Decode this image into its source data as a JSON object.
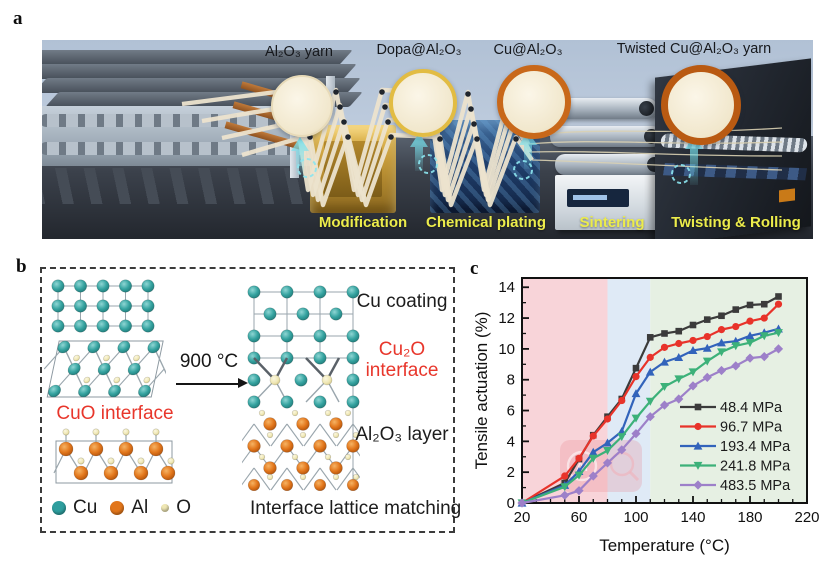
{
  "panel_a": {
    "letter": "a",
    "yarns": [
      {
        "label": "Al₂O₃ yarn",
        "ring_color": "#e7dab8",
        "ring_width": 2
      },
      {
        "label": "Dopa@Al₂O₃",
        "ring_color": "#e2bc43",
        "ring_width": 4
      },
      {
        "label": "Cu@Al₂O₃",
        "ring_color": "#c8681a",
        "ring_width": 6
      },
      {
        "label": "Twisted Cu@Al₂O₃ yarn",
        "ring_color": "#b95a12",
        "ring_width": 7
      }
    ],
    "process_labels": [
      "Modification",
      "Chemical plating",
      "Sintering",
      "Twisting & Rolling"
    ],
    "process_label_color": "#ecec4b"
  },
  "panel_b": {
    "letter": "b",
    "reaction_temperature": "900 °C",
    "left_interface_label": "CuO interface",
    "right_labels": {
      "coating": "Cu coating",
      "interface": "Cu₂O interface",
      "layer": "Al₂O₃ layer"
    },
    "legend": [
      {
        "symbol": "Cu",
        "color": "#2e9e9e"
      },
      {
        "symbol": "Al",
        "color": "#e2761b"
      },
      {
        "symbol": "O",
        "color": "#efe7b4"
      }
    ],
    "caption": "Interface lattice matching"
  },
  "panel_c": {
    "letter": "c"
  },
  "chart_data": {
    "type": "line",
    "title": "",
    "xlabel": "Temperature (°C)",
    "ylabel": "Tensile actuation (%)",
    "xlim": [
      20,
      220
    ],
    "ylim": [
      0,
      14.6
    ],
    "x_ticks": [
      20,
      60,
      100,
      140,
      180,
      220
    ],
    "x_minor_step": 10,
    "y_ticks": [
      0,
      2,
      4,
      6,
      8,
      10,
      12,
      14
    ],
    "y_minor_step": 1,
    "grid": false,
    "legend_position": "inside-right-lower",
    "background_bands": [
      {
        "x_from": 20,
        "x_to": 80,
        "color": "#f8d4d9"
      },
      {
        "x_from": 80,
        "x_to": 110,
        "color": "#dfeaf6"
      },
      {
        "x_from": 110,
        "x_to": 220,
        "color": "#e6f0e3"
      }
    ],
    "x": [
      20,
      50,
      60,
      70,
      80,
      90,
      100,
      110,
      120,
      130,
      140,
      150,
      160,
      170,
      180,
      190,
      200
    ],
    "series": [
      {
        "name": "48.4 MPa",
        "color": "#3b3b3b",
        "marker": "square",
        "values": [
          0,
          1.3,
          2.85,
          4.4,
          5.6,
          6.75,
          8.75,
          10.75,
          11.0,
          11.15,
          11.55,
          11.9,
          12.15,
          12.55,
          12.85,
          12.9,
          13.4
        ]
      },
      {
        "name": "96.7 MPa",
        "color": "#e8332a",
        "marker": "circle",
        "values": [
          0,
          1.75,
          2.9,
          4.35,
          5.45,
          6.65,
          8.2,
          9.45,
          10.1,
          10.35,
          10.55,
          10.8,
          11.25,
          11.45,
          11.8,
          12.0,
          12.9
        ]
      },
      {
        "name": "193.4 MPa",
        "color": "#3263bb",
        "marker": "triangle-up",
        "values": [
          0,
          1.15,
          2.05,
          3.3,
          3.9,
          4.65,
          7.1,
          8.5,
          9.15,
          9.45,
          9.9,
          10.05,
          10.4,
          10.5,
          10.85,
          11.05,
          11.3
        ]
      },
      {
        "name": "241.8 MPa",
        "color": "#3cb179",
        "marker": "triangle-down",
        "values": [
          0,
          1.05,
          1.8,
          2.9,
          3.4,
          4.3,
          5.5,
          6.6,
          7.55,
          8.05,
          8.5,
          9.2,
          9.8,
          10.2,
          10.4,
          10.85,
          11.05
        ]
      },
      {
        "name": "483.5 MPa",
        "color": "#9d80c9",
        "marker": "diamond",
        "values": [
          0,
          0.5,
          0.8,
          1.75,
          2.6,
          3.45,
          4.5,
          5.6,
          6.35,
          6.75,
          7.6,
          8.15,
          8.6,
          8.9,
          9.4,
          9.5,
          10.0
        ]
      }
    ],
    "watermark": {
      "text": "AI"
    }
  }
}
